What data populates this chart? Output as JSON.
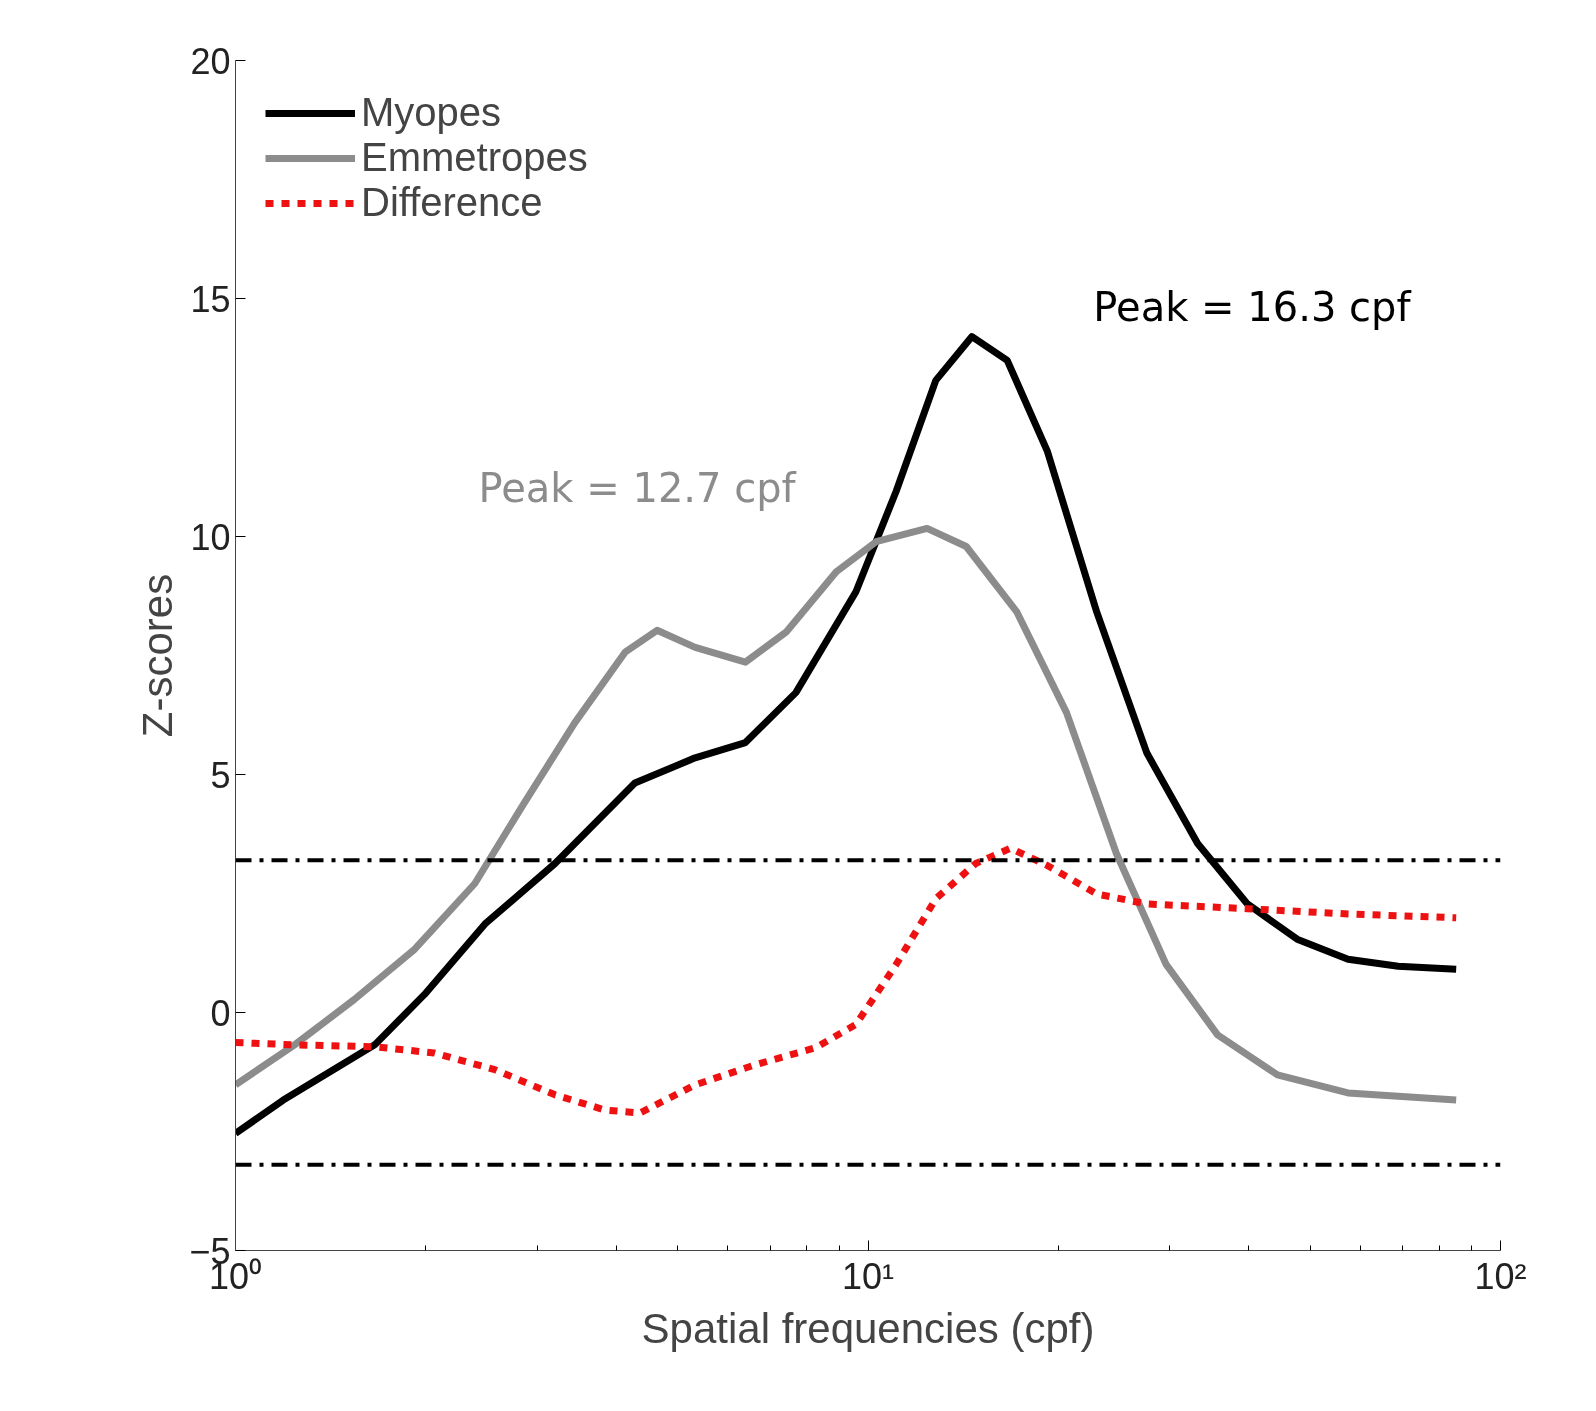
{
  "chart_data": {
    "type": "line",
    "xlabel": "Spatial frequencies (cpf)",
    "ylabel": "Z-scores",
    "log": "x",
    "xlim": [
      1,
      100
    ],
    "xticks": [
      {
        "value": 1,
        "label": "10⁰"
      },
      {
        "value": 10,
        "label": "10¹"
      },
      {
        "value": 100,
        "label": "10²"
      }
    ],
    "ylim": [
      -5,
      20
    ],
    "yticks": [
      -5,
      0,
      5,
      10,
      15,
      20
    ],
    "grid": false,
    "legend": "top left",
    "marker": "none",
    "series": [
      {
        "name": "Myopes",
        "color": "#000000",
        "line_style": "solid",
        "x": [
          1,
          1.19,
          1.66,
          1.99,
          2.48,
          3.2,
          4.28,
          5.33,
          6.4,
          7.69,
          9.57,
          11.08,
          12.8,
          14.6,
          16.6,
          19.2,
          23.0,
          27.6,
          33.2,
          39.8,
          47.7,
          57.4,
          68.9,
          85.1
        ],
        "values": [
          -2.54,
          -1.84,
          -0.68,
          0.38,
          1.86,
          3.13,
          4.82,
          5.35,
          5.67,
          6.72,
          8.84,
          10.95,
          13.28,
          14.2,
          13.7,
          11.8,
          8.41,
          5.45,
          3.55,
          2.28,
          1.54,
          1.12,
          0.97,
          0.91
        ]
      },
      {
        "name": "Emmetropes",
        "color": "#8c8c8c",
        "line_style": "solid",
        "x": [
          1,
          1.24,
          1.54,
          1.92,
          2.39,
          2.86,
          3.44,
          4.13,
          4.64,
          5.33,
          6.4,
          7.42,
          8.91,
          10.3,
          12.4,
          14.3,
          17.2,
          20.6,
          24.7,
          29.6,
          35.7,
          44.4,
          57.4,
          85.1
        ],
        "values": [
          -1.52,
          -0.68,
          0.27,
          1.33,
          2.71,
          4.4,
          6.09,
          7.57,
          8.03,
          7.67,
          7.36,
          7.99,
          9.26,
          9.89,
          10.17,
          9.79,
          8.41,
          6.3,
          3.34,
          1.01,
          -0.47,
          -1.31,
          -1.69,
          -1.84
        ]
      },
      {
        "name": "Difference",
        "color": "#ee1111",
        "line_style": "dotted",
        "x": [
          1,
          1.24,
          1.66,
          2.06,
          2.57,
          3.2,
          3.84,
          4.36,
          5.33,
          6.63,
          8.26,
          9.57,
          11.08,
          12.8,
          14.8,
          16.8,
          19.2,
          23.0,
          27.6,
          39.8,
          57.4,
          85.1
        ],
        "values": [
          -0.63,
          -0.68,
          -0.72,
          -0.85,
          -1.2,
          -1.73,
          -2.05,
          -2.11,
          -1.52,
          -1.1,
          -0.74,
          -0.25,
          1.01,
          2.39,
          3.13,
          3.45,
          3.09,
          2.49,
          2.28,
          2.18,
          2.07,
          1.99
        ]
      }
    ],
    "ref_lines": [
      {
        "axis": "y",
        "value": 3.2,
        "color": "#000000",
        "line_style": "dashdot"
      },
      {
        "axis": "y",
        "value": -3.2,
        "color": "#000000",
        "line_style": "dashdot"
      }
    ],
    "annotations": [
      "Peak = 16.3 cpf",
      "Peak = 12.7 cpf"
    ]
  }
}
